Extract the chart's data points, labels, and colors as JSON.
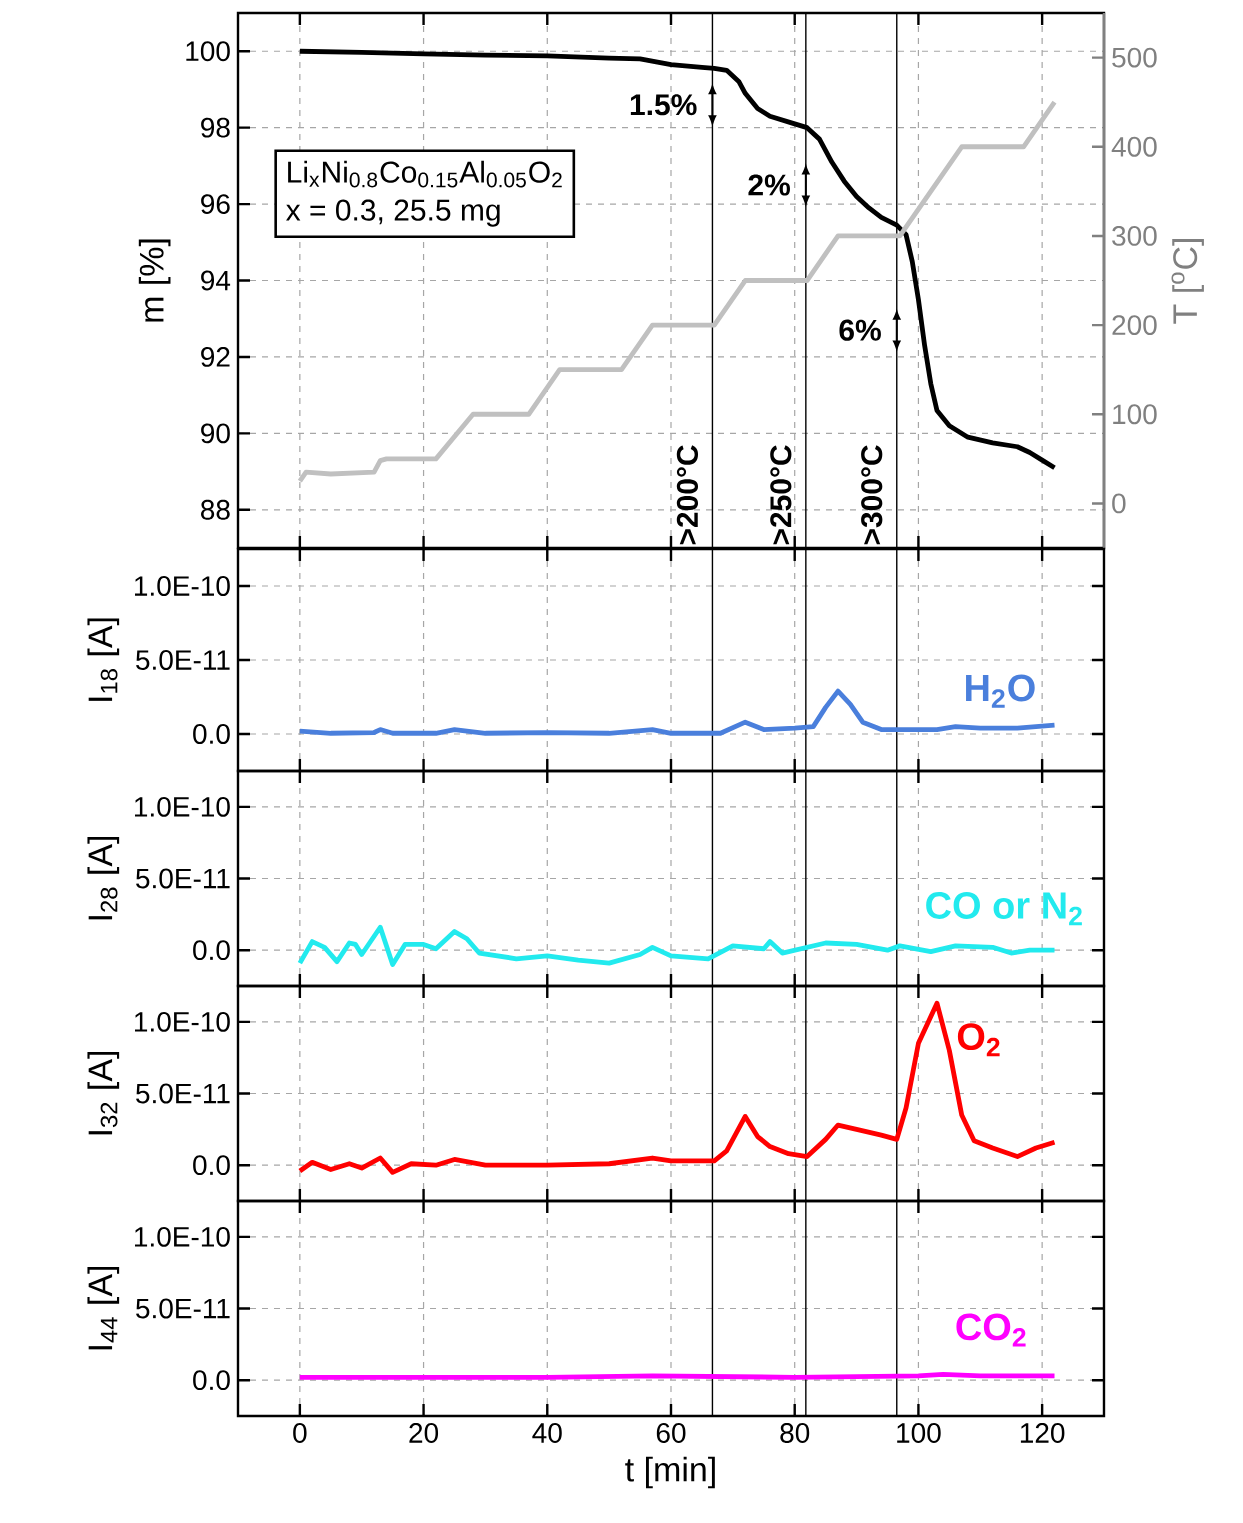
{
  "chart_data": [
    {
      "type": "line",
      "ylabel": "m [%]",
      "y2label": "T [$^{o}$C]",
      "xlim": [
        -10,
        130
      ],
      "xticks": [
        0,
        20,
        40,
        60,
        80,
        100,
        120
      ],
      "ylim": [
        87,
        101
      ],
      "yticks": [
        88,
        90,
        92,
        94,
        96,
        98,
        100
      ],
      "y2lim": [
        -50,
        550
      ],
      "y2ticks": [
        0,
        100,
        200,
        300,
        400,
        500
      ],
      "grid": true,
      "tick_labels": "y",
      "series": [
        {
          "color": "#000000",
          "x": [
            0,
            10,
            20,
            30,
            40,
            50,
            55,
            60,
            65,
            67,
            69,
            71,
            72,
            74,
            76,
            80,
            82,
            84,
            86,
            88,
            90,
            92,
            94,
            96.5,
            98,
            99,
            100,
            101,
            102,
            103,
            105,
            108,
            112,
            116,
            118,
            120,
            122
          ],
          "values": [
            100,
            99.97,
            99.93,
            99.9,
            99.88,
            99.82,
            99.8,
            99.65,
            99.58,
            99.55,
            99.5,
            99.2,
            98.9,
            98.5,
            98.3,
            98.1,
            98.0,
            97.7,
            97.1,
            96.6,
            96.2,
            95.9,
            95.65,
            95.45,
            95.2,
            94.5,
            93.5,
            92.3,
            91.3,
            90.6,
            90.2,
            89.9,
            89.75,
            89.65,
            89.5,
            89.3,
            89.1
          ]
        },
        {
          "color": "#c0c0c0",
          "axis": "y2",
          "x": [
            0,
            1,
            5,
            12,
            13,
            14,
            22,
            28,
            37,
            42,
            52,
            57,
            67,
            72,
            82,
            87,
            97,
            107,
            117,
            122
          ],
          "values": [
            25,
            35,
            33,
            35,
            48,
            50,
            50,
            100,
            100,
            150,
            150,
            200,
            200,
            250,
            250,
            300,
            300,
            400,
            400,
            450
          ]
        }
      ],
      "ref_lines": [
        {
          "axis": "x",
          "value": 66.7,
          "label": ">200°C"
        },
        {
          "axis": "x",
          "value": 81.8,
          "label": ">250°C"
        },
        {
          "axis": "x",
          "value": 96.5,
          "label": ">300°C"
        }
      ],
      "annotations": [
        "Li$_{x}$Ni$_{0.8}$Co$_{0.15}$Al$_{0.05}$O$_{2}$",
        "x = 0.3, 25.5 mg",
        {
          "text": "1.5%",
          "x": 66.7,
          "y": 98.6
        },
        {
          "text": "2%",
          "x": 81.8,
          "y": 96.5
        },
        {
          "text": "6%",
          "x": 96.5,
          "y": 92.7
        }
      ]
    },
    {
      "type": "line",
      "ylabel": "I$_{18}$ [A]",
      "xlim": [
        -10,
        130
      ],
      "xticks": [
        0,
        20,
        40,
        60,
        80,
        100,
        120
      ],
      "ylim": [
        -2.5e-11,
        1.25e-10
      ],
      "yticks": [
        {
          "value": 0,
          "label": "0.0"
        },
        {
          "value": 5e-11,
          "label": "5.0E-11"
        },
        {
          "value": 1e-10,
          "label": "1.0E-10"
        }
      ],
      "grid": true,
      "tick_labels": "y",
      "series": [
        {
          "name": "H$_{2}$O",
          "color": "#4a7fdc",
          "x": [
            0,
            5,
            12,
            13,
            15,
            22,
            25,
            30,
            40,
            50,
            57,
            60,
            68,
            72,
            75,
            80,
            83,
            85,
            87,
            89,
            91,
            94,
            98,
            103,
            106,
            110,
            116,
            122
          ],
          "values": [
            2e-12,
            5e-13,
            1e-12,
            3e-12,
            5e-13,
            5e-13,
            3e-12,
            5e-13,
            1e-12,
            5e-13,
            3e-12,
            5e-13,
            5e-13,
            8e-12,
            3e-12,
            4e-12,
            5e-12,
            1.8e-11,
            2.9e-11,
            2e-11,
            8e-12,
            3e-12,
            3e-12,
            3e-12,
            5e-12,
            4e-12,
            4e-12,
            6e-12
          ]
        }
      ],
      "ref_lines": [
        {
          "axis": "x",
          "value": 66.7
        },
        {
          "axis": "x",
          "value": 81.8
        },
        {
          "axis": "x",
          "value": 96.5
        }
      ]
    },
    {
      "type": "line",
      "ylabel": "I$_{28}$ [A]",
      "xlim": [
        -10,
        130
      ],
      "xticks": [
        0,
        20,
        40,
        60,
        80,
        100,
        120
      ],
      "ylim": [
        -2.5e-11,
        1.25e-10
      ],
      "yticks": [
        {
          "value": 0,
          "label": "0.0"
        },
        {
          "value": 5e-11,
          "label": "5.0E-11"
        },
        {
          "value": 1e-10,
          "label": "1.0E-10"
        }
      ],
      "grid": true,
      "tick_labels": "y",
      "series": [
        {
          "name": "CO or N$_{2}$",
          "color": "#22eaee",
          "x": [
            0,
            2,
            4,
            6,
            8,
            9,
            10,
            13,
            15,
            17,
            20,
            22,
            25,
            27,
            29,
            35,
            40,
            45,
            50,
            55,
            57,
            60,
            66,
            70,
            75,
            76,
            78,
            85,
            90,
            95,
            97,
            102,
            106,
            112,
            115,
            118,
            122
          ],
          "values": [
            -9e-12,
            6e-12,
            2e-12,
            -8e-12,
            5e-12,
            4e-12,
            -3e-12,
            1.6e-11,
            -1e-11,
            4e-12,
            4e-12,
            1e-12,
            1.3e-11,
            8e-12,
            -2e-12,
            -6e-12,
            -4e-12,
            -7e-12,
            -9e-12,
            -3e-12,
            2e-12,
            -4e-12,
            -6e-12,
            3e-12,
            1e-12,
            6e-12,
            -2e-12,
            5e-12,
            4e-12,
            0,
            3e-12,
            -1e-12,
            3e-12,
            2e-12,
            -2e-12,
            0,
            0
          ]
        }
      ],
      "ref_lines": [
        {
          "axis": "x",
          "value": 66.7
        },
        {
          "axis": "x",
          "value": 81.8
        },
        {
          "axis": "x",
          "value": 96.5
        }
      ]
    },
    {
      "type": "line",
      "ylabel": "I$_{32}$ [A]",
      "xlim": [
        -10,
        130
      ],
      "xticks": [
        0,
        20,
        40,
        60,
        80,
        100,
        120
      ],
      "ylim": [
        -2.5e-11,
        1.25e-10
      ],
      "yticks": [
        {
          "value": 0,
          "label": "0.0"
        },
        {
          "value": 5e-11,
          "label": "5.0E-11"
        },
        {
          "value": 1e-10,
          "label": "1.0E-10"
        }
      ],
      "grid": true,
      "tick_labels": "y",
      "series": [
        {
          "name": "O$_{2}$",
          "color": "#ff0000",
          "x": [
            0,
            2,
            5,
            8,
            10,
            13,
            15,
            18,
            22,
            25,
            30,
            40,
            50,
            57,
            60,
            67,
            69,
            72,
            74,
            76,
            79,
            82,
            85,
            87,
            90,
            94,
            96.5,
            98,
            100,
            103,
            105,
            107,
            109,
            112,
            116,
            119,
            122
          ],
          "values": [
            -4e-12,
            2e-12,
            -3e-12,
            1e-12,
            -2e-12,
            5e-12,
            -5e-12,
            1e-12,
            0,
            4e-12,
            0,
            0,
            1e-12,
            5e-12,
            3e-12,
            3e-12,
            1e-11,
            3.4e-11,
            2e-11,
            1.3e-11,
            8e-12,
            6e-12,
            1.8e-11,
            2.8e-11,
            2.5e-11,
            2.1e-11,
            1.8e-11,
            4e-11,
            8.5e-11,
            1.13e-10,
            8e-11,
            3.5e-11,
            1.7e-11,
            1.2e-11,
            6e-12,
            1.2e-11,
            1.6e-11
          ]
        }
      ],
      "ref_lines": [
        {
          "axis": "x",
          "value": 66.7
        },
        {
          "axis": "x",
          "value": 81.8
        },
        {
          "axis": "x",
          "value": 96.5
        }
      ]
    },
    {
      "type": "line",
      "xlabel": "t [min]",
      "ylabel": "I$_{44}$ [A]",
      "xlim": [
        -10,
        130
      ],
      "xticks": [
        0,
        20,
        40,
        60,
        80,
        100,
        120
      ],
      "ylim": [
        -2.5e-11,
        1.25e-10
      ],
      "yticks": [
        {
          "value": 0,
          "label": "0.0"
        },
        {
          "value": 5e-11,
          "label": "5.0E-11"
        },
        {
          "value": 1e-10,
          "label": "1.0E-10"
        }
      ],
      "grid": true,
      "series": [
        {
          "name": "CO$_{2}$",
          "color": "#ff00ff",
          "x": [
            0,
            40,
            57,
            80,
            100,
            104,
            110,
            122
          ],
          "values": [
            2e-12,
            2e-12,
            3e-12,
            2e-12,
            3e-12,
            4e-12,
            3e-12,
            3e-12
          ]
        }
      ],
      "ref_lines": [
        {
          "axis": "x",
          "value": 66.7
        },
        {
          "axis": "x",
          "value": 81.8
        },
        {
          "axis": "x",
          "value": 96.5
        }
      ]
    }
  ]
}
